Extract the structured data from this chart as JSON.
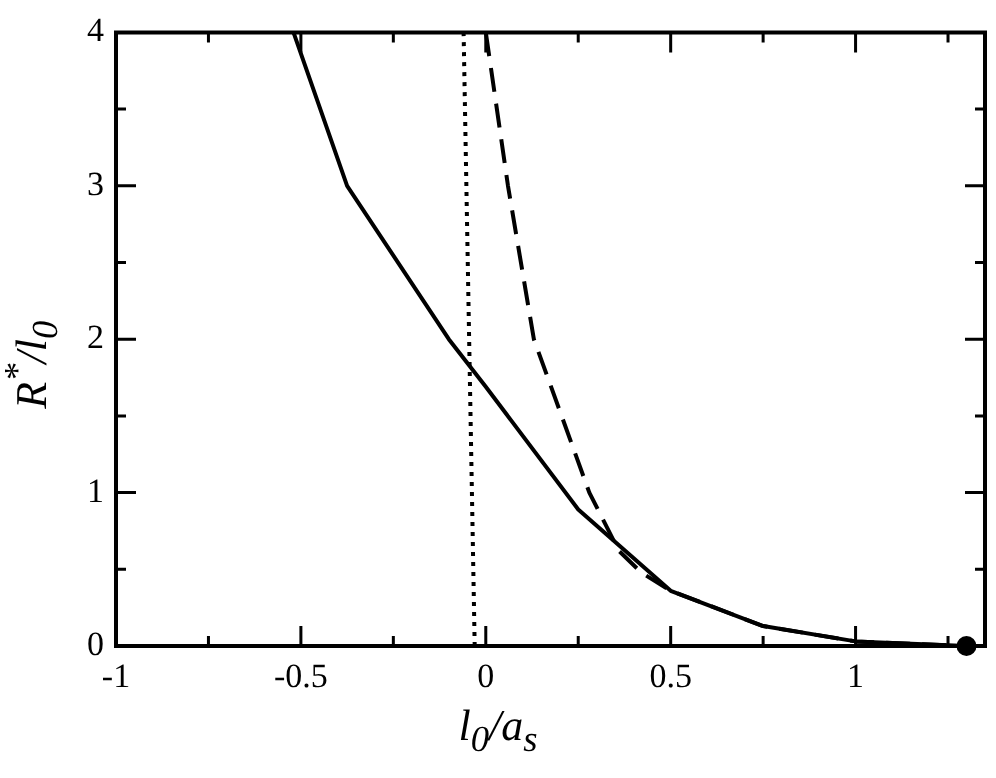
{
  "chart_data": {
    "type": "line",
    "xlabel": "l$_{0}$/a$_{s}$",
    "ylabel": "R$^{*}$/l$_{0}$",
    "xlim": [
      -1,
      1.35
    ],
    "ylim": [
      0,
      4
    ],
    "xticks": [
      -1,
      {
        "value": -0.75,
        "label": null
      },
      -0.5,
      {
        "value": -0.25,
        "label": null
      },
      0,
      {
        "value": 0.25,
        "label": null
      },
      0.5,
      {
        "value": 0.75,
        "label": null
      },
      1,
      {
        "value": 1.25,
        "label": null
      }
    ],
    "yticks": [
      0,
      {
        "value": 0.5,
        "label": null
      },
      1,
      {
        "value": 1.5,
        "label": null
      },
      2,
      {
        "value": 2.5,
        "label": null
      },
      3,
      {
        "value": 3.5,
        "label": null
      },
      4
    ],
    "grid": false,
    "legend": false,
    "series": [
      {
        "color": "#000000",
        "line_style": "solid",
        "marker": "none",
        "x": [
          -0.52,
          -0.375,
          -0.1,
          0,
          0.25,
          0.5,
          0.75,
          1,
          1.3
        ],
        "values": [
          4,
          3,
          2,
          1.69,
          0.89,
          0.36,
          0.13,
          0.03,
          0
        ]
      },
      {
        "color": "#000000",
        "line_style": "dashed",
        "marker": "none",
        "x": [
          0,
          0.06,
          0.13,
          0.28,
          0.36,
          0.42,
          0.5,
          0.75,
          1,
          1.3
        ],
        "values": [
          4,
          3,
          2,
          1,
          0.62,
          0.48,
          0.36,
          0.13,
          0.03,
          0
        ]
      },
      {
        "color": "#000000",
        "line_style": "dotted",
        "marker": "none",
        "x": [
          -0.03,
          -0.06
        ],
        "values": [
          0,
          4
        ]
      },
      {
        "type": "scatter",
        "color": "#000000",
        "marker": "circle",
        "x": [
          1.3
        ],
        "values": [
          0
        ]
      }
    ]
  }
}
